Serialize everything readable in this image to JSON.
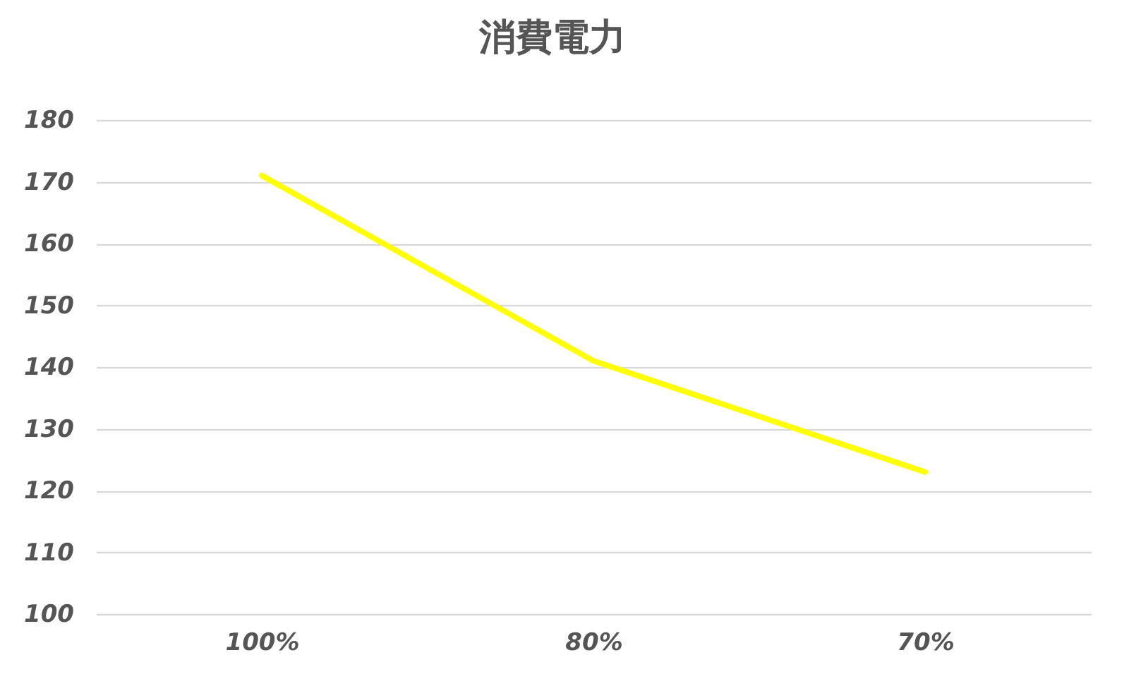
{
  "chart_data": {
    "type": "line",
    "title": "消費電力",
    "categories": [
      "100%",
      "80%",
      "70%"
    ],
    "series": [
      {
        "color": "#ffff00",
        "values": [
          171,
          141,
          123
        ]
      }
    ],
    "ylim": [
      100,
      180
    ],
    "yticks": [
      100,
      110,
      120,
      130,
      140,
      150,
      160,
      170,
      180
    ],
    "grid": "y"
  }
}
